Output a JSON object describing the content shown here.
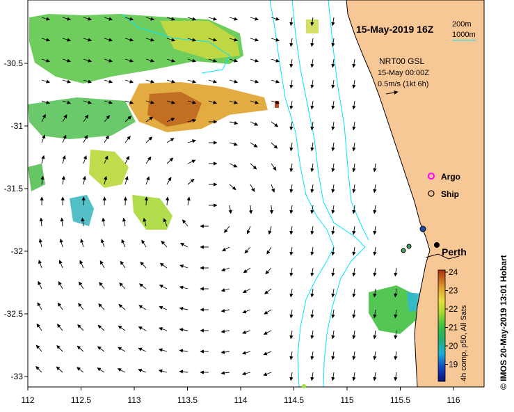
{
  "map": {
    "title": "15-May-2019 16Z",
    "product": "NRT00 GSL",
    "product_time": "15-May 00:00Z",
    "vector_scale": "0.5m/s (1kt 6h)",
    "depth_legend": [
      "200m",
      "1000m"
    ],
    "place_label": "Perth",
    "credit": "© IMOS 20-May-2019 13:01 Hobart",
    "x_ticks": [
      "112",
      "112.5",
      "113",
      "113.5",
      "114",
      "114.5",
      "115",
      "115.5",
      "116"
    ],
    "y_ticks": [
      "-30.5",
      "-31",
      "-31.5",
      "-32",
      "-32.5",
      "-33"
    ],
    "legend": {
      "argo_label": "Argo",
      "ship_label": "Ship"
    },
    "colorbar": {
      "title": "4h comp, p50, All Sats",
      "ticks": [
        "24",
        "23",
        "22",
        "21",
        "20",
        "19"
      ]
    },
    "colors": {
      "land": "#f8c796",
      "isobath": "#00e5ff",
      "argo": "#ff00ff"
    }
  }
}
